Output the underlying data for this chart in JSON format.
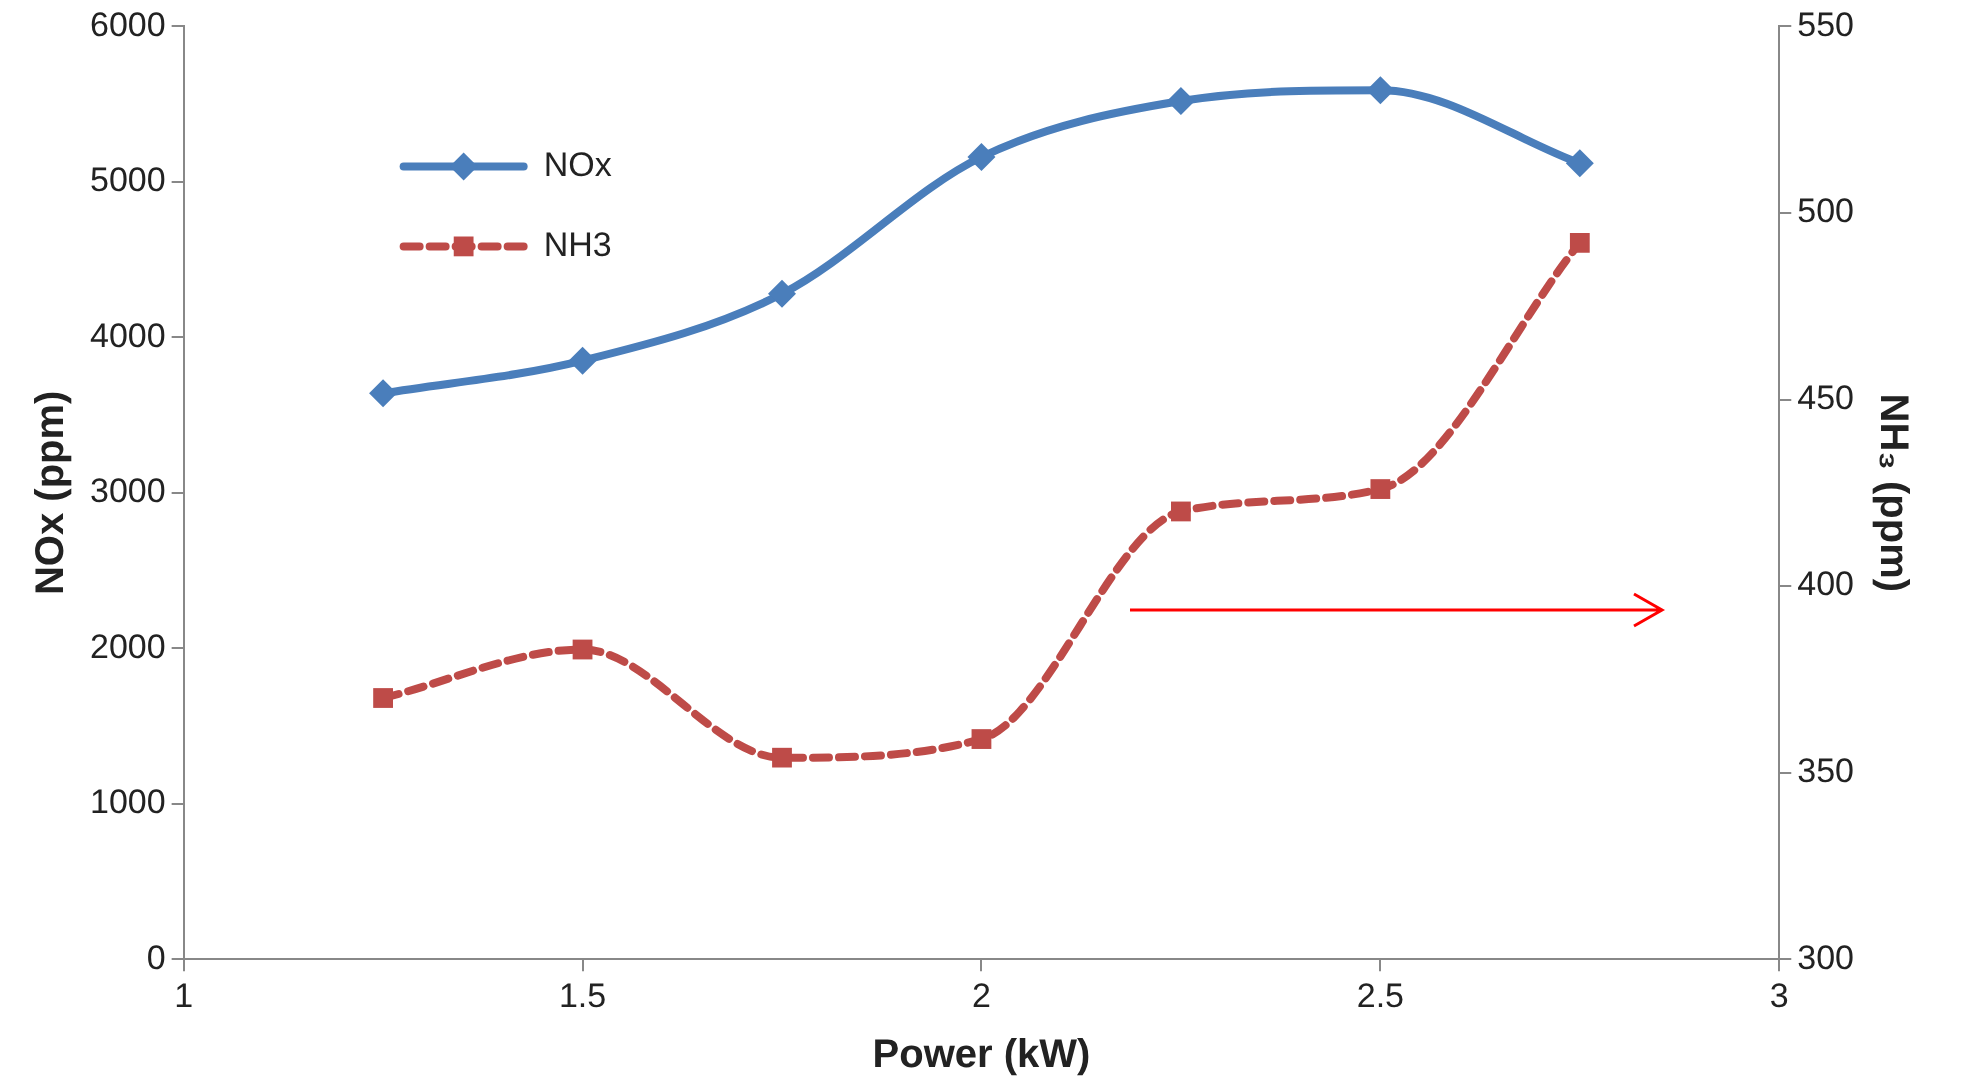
{
  "chart_data": {
    "type": "line",
    "xlabel": "Power (kW)",
    "ylabel": "NOx (ppm)",
    "y2label": "NH₃ (ppm)",
    "x": [
      1.25,
      1.5,
      1.75,
      2,
      2.25,
      2.5,
      2.75
    ],
    "series": [
      {
        "name": "NOx",
        "color": "#4a7ebb",
        "values": [
          3640,
          3850,
          4280,
          5160,
          5520,
          5590,
          5120
        ],
        "marker": "diamond",
        "line_style": "solid"
      },
      {
        "name": "NH3",
        "color": "#be4b48",
        "axis": "y2",
        "values": [
          370,
          383,
          354,
          359,
          420,
          426,
          492
        ],
        "marker": "square",
        "line_style": "dashed"
      }
    ],
    "xlim": [
      1,
      3
    ],
    "xticks": [
      1,
      1.5,
      2,
      2.5,
      3
    ],
    "ylim": [
      0,
      6000
    ],
    "yticks": [
      0,
      1000,
      2000,
      3000,
      4000,
      5000,
      6000
    ],
    "y2lim": [
      300,
      550
    ],
    "y2ticks": [
      300,
      350,
      400,
      450,
      500,
      550
    ],
    "grid": false,
    "legend": "top left"
  }
}
